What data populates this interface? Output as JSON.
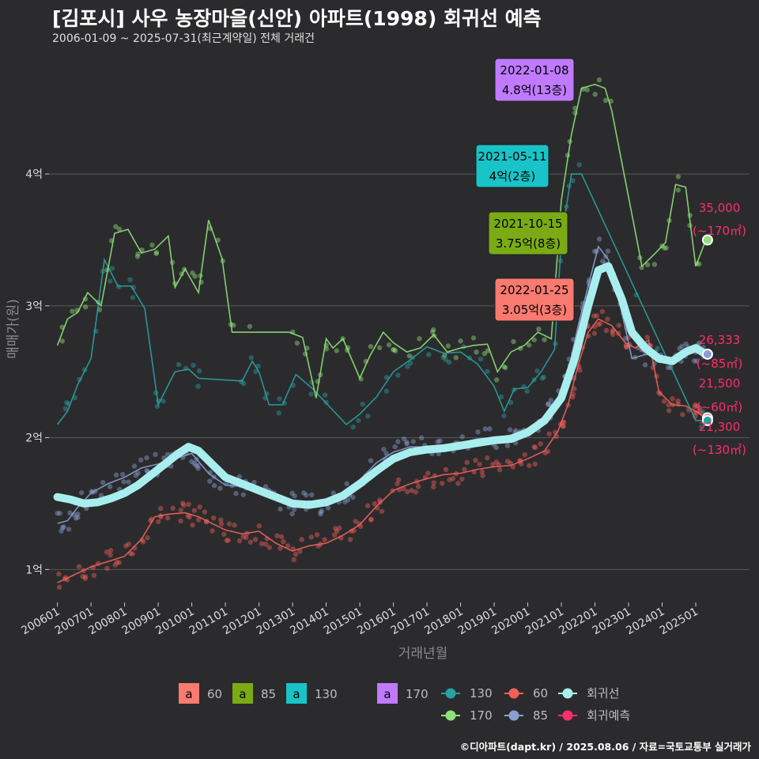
{
  "header": {
    "title": "[김포시] 사우 농장마을(신안) 아파트(1998) 회귀선 예측",
    "subtitle": "2006-01-09 ~ 2025-07-31(최근계약일) 전체 거래건"
  },
  "caption": "©디아파트(dapt.kr) / 2025.08.06 / 자료=국토교통부 실거래가",
  "colors": {
    "background": "#2b2b2d",
    "grid": "#5a5a5c",
    "s60": "#f0605a",
    "s85": "#8a9fd0",
    "s130": "#2aa0a0",
    "s170": "#8ee07a",
    "regression": "#a8eeee",
    "forecast": "#ff2d6a",
    "box60": "#f87a70",
    "box85": "#7aab14",
    "box130": "#18c4c8",
    "box170": "#c07aff"
  },
  "chart_data": {
    "type": "line",
    "title": "[김포시] 사우 농장마을(신안) 아파트(1998) 회귀선 예측",
    "subtitle": "2006-01-09 ~ 2025-07-31(최근계약일) 전체 거래건",
    "xlabel": "거래년월",
    "ylabel": "매매가(원)",
    "x_ticks": [
      "200601",
      "200701",
      "200801",
      "200901",
      "201001",
      "201101",
      "201201",
      "201301",
      "201401",
      "201501",
      "201601",
      "201701",
      "201801",
      "201901",
      "202001",
      "202101",
      "202201",
      "202301",
      "202401",
      "202501"
    ],
    "y_ticks": [
      {
        "value": 10000,
        "label": "1억"
      },
      {
        "value": 20000,
        "label": "2억"
      },
      {
        "value": 30000,
        "label": "3억"
      },
      {
        "value": 40000,
        "label": "4억"
      }
    ],
    "ylim": [
      7500,
      49000
    ],
    "xlim": [
      2005.75,
      2026.6
    ],
    "grid": true,
    "series": [
      {
        "name": "60",
        "points": [
          [
            2006.0,
            9000
          ],
          [
            2006.5,
            9600
          ],
          [
            2007.0,
            10200
          ],
          [
            2007.5,
            10600
          ],
          [
            2008.0,
            11000
          ],
          [
            2008.5,
            12300
          ],
          [
            2008.9,
            14000
          ],
          [
            2009.3,
            14200
          ],
          [
            2009.8,
            14300
          ],
          [
            2010.2,
            14000
          ],
          [
            2010.6,
            13500
          ],
          [
            2011.0,
            13000
          ],
          [
            2011.5,
            12700
          ],
          [
            2012.0,
            12900
          ],
          [
            2012.5,
            12000
          ],
          [
            2013.0,
            11400
          ],
          [
            2013.5,
            11800
          ],
          [
            2014.0,
            12000
          ],
          [
            2014.5,
            12600
          ],
          [
            2015.0,
            13400
          ],
          [
            2015.5,
            14800
          ],
          [
            2016.0,
            16000
          ],
          [
            2016.5,
            16500
          ],
          [
            2017.0,
            16900
          ],
          [
            2017.5,
            17200
          ],
          [
            2018.0,
            17300
          ],
          [
            2018.5,
            17600
          ],
          [
            2019.0,
            17800
          ],
          [
            2019.5,
            17900
          ],
          [
            2020.0,
            18400
          ],
          [
            2020.5,
            19000
          ],
          [
            2020.9,
            20500
          ],
          [
            2021.2,
            22500
          ],
          [
            2021.5,
            25500
          ],
          [
            2021.8,
            28000
          ],
          [
            2022.1,
            29000
          ],
          [
            2022.5,
            28500
          ],
          [
            2022.9,
            27200
          ],
          [
            2023.2,
            26800
          ],
          [
            2023.6,
            27400
          ],
          [
            2023.9,
            23500
          ],
          [
            2024.3,
            22500
          ],
          [
            2024.7,
            22400
          ],
          [
            2025.0,
            22000
          ],
          [
            2025.3,
            21500
          ]
        ]
      },
      {
        "name": "85",
        "points": [
          [
            2006.0,
            13500
          ],
          [
            2006.3,
            13700
          ],
          [
            2006.6,
            14700
          ],
          [
            2007.0,
            15800
          ],
          [
            2007.5,
            16500
          ],
          [
            2008.0,
            17000
          ],
          [
            2008.5,
            17700
          ],
          [
            2009.0,
            18000
          ],
          [
            2009.5,
            18400
          ],
          [
            2010.0,
            18800
          ],
          [
            2010.5,
            17300
          ],
          [
            2011.0,
            16400
          ],
          [
            2011.5,
            16300
          ],
          [
            2012.0,
            15900
          ],
          [
            2012.5,
            15400
          ],
          [
            2013.0,
            15000
          ],
          [
            2013.5,
            15200
          ],
          [
            2014.0,
            14900
          ],
          [
            2014.5,
            15500
          ],
          [
            2015.0,
            16800
          ],
          [
            2015.5,
            18100
          ],
          [
            2016.0,
            18900
          ],
          [
            2016.5,
            19300
          ],
          [
            2017.0,
            19300
          ],
          [
            2017.5,
            19400
          ],
          [
            2018.0,
            19600
          ],
          [
            2018.5,
            19900
          ],
          [
            2019.0,
            20000
          ],
          [
            2019.5,
            20200
          ],
          [
            2020.0,
            20700
          ],
          [
            2020.5,
            21400
          ],
          [
            2020.9,
            22800
          ],
          [
            2021.2,
            25000
          ],
          [
            2021.5,
            28500
          ],
          [
            2021.8,
            31500
          ],
          [
            2022.1,
            34500
          ],
          [
            2022.4,
            33500
          ],
          [
            2022.8,
            29500
          ],
          [
            2023.1,
            26000
          ],
          [
            2023.5,
            26300
          ],
          [
            2023.9,
            26300
          ],
          [
            2024.3,
            26000
          ],
          [
            2024.7,
            26400
          ],
          [
            2025.0,
            26600
          ],
          [
            2025.3,
            26500
          ]
        ]
      },
      {
        "name": "130",
        "points": [
          [
            2006.0,
            21000
          ],
          [
            2006.3,
            22000
          ],
          [
            2006.6,
            24000
          ],
          [
            2007.0,
            26000
          ],
          [
            2007.4,
            33500
          ],
          [
            2007.8,
            31500
          ],
          [
            2008.2,
            31500
          ],
          [
            2008.6,
            29800
          ],
          [
            2009.0,
            22500
          ],
          [
            2009.5,
            25000
          ],
          [
            2009.9,
            25200
          ],
          [
            2010.2,
            24500
          ],
          [
            2011.5,
            24300
          ],
          [
            2011.8,
            25800
          ],
          [
            2012.0,
            25000
          ],
          [
            2012.3,
            22500
          ],
          [
            2012.7,
            22500
          ],
          [
            2013.1,
            24800
          ],
          [
            2013.6,
            23700
          ],
          [
            2014.6,
            21000
          ],
          [
            2015.0,
            21800
          ],
          [
            2015.5,
            23100
          ],
          [
            2016.0,
            25000
          ],
          [
            2016.5,
            25900
          ],
          [
            2017.0,
            26900
          ],
          [
            2017.5,
            26400
          ],
          [
            2018.0,
            26500
          ],
          [
            2018.5,
            25600
          ],
          [
            2019.0,
            23900
          ],
          [
            2019.3,
            22000
          ],
          [
            2019.6,
            23700
          ],
          [
            2020.0,
            23800
          ],
          [
            2020.4,
            25000
          ],
          [
            2020.8,
            26700
          ],
          [
            2021.0,
            35000
          ],
          [
            2021.3,
            40000
          ],
          [
            2021.6,
            40000
          ],
          [
            2025.0,
            21300
          ],
          [
            2025.3,
            21300
          ]
        ]
      },
      {
        "name": "170",
        "points": [
          [
            2006.0,
            27000
          ],
          [
            2006.3,
            29000
          ],
          [
            2006.6,
            29500
          ],
          [
            2006.9,
            31000
          ],
          [
            2007.3,
            30000
          ],
          [
            2007.7,
            35500
          ],
          [
            2008.1,
            35800
          ],
          [
            2008.5,
            34000
          ],
          [
            2008.9,
            34300
          ],
          [
            2009.3,
            35300
          ],
          [
            2009.5,
            31400
          ],
          [
            2009.8,
            32800
          ],
          [
            2010.2,
            31000
          ],
          [
            2010.5,
            36500
          ],
          [
            2010.9,
            33600
          ],
          [
            2011.2,
            28000
          ],
          [
            2012.9,
            28000
          ],
          [
            2013.3,
            27600
          ],
          [
            2013.7,
            23000
          ],
          [
            2014.0,
            27500
          ],
          [
            2014.2,
            26800
          ],
          [
            2014.5,
            27500
          ],
          [
            2015.0,
            24500
          ],
          [
            2015.3,
            26200
          ],
          [
            2015.7,
            28000
          ],
          [
            2016.0,
            27200
          ],
          [
            2016.4,
            26500
          ],
          [
            2016.8,
            26800
          ],
          [
            2017.2,
            27800
          ],
          [
            2017.6,
            26500
          ],
          [
            2018.0,
            26800
          ],
          [
            2018.4,
            27000
          ],
          [
            2018.8,
            27100
          ],
          [
            2019.1,
            25000
          ],
          [
            2019.5,
            26500
          ],
          [
            2019.9,
            27000
          ],
          [
            2020.3,
            28000
          ],
          [
            2020.7,
            27500
          ],
          [
            2021.0,
            38000
          ],
          [
            2021.3,
            43000
          ],
          [
            2021.6,
            46500
          ],
          [
            2022.0,
            46800
          ],
          [
            2022.3,
            46500
          ],
          [
            2022.5,
            44800
          ],
          [
            2023.4,
            33000
          ],
          [
            2023.8,
            34000
          ],
          [
            2024.1,
            34800
          ],
          [
            2024.4,
            39200
          ],
          [
            2024.7,
            39000
          ],
          [
            2025.0,
            33000
          ],
          [
            2025.3,
            35000
          ]
        ]
      },
      {
        "name": "회귀선",
        "points": [
          [
            2006.0,
            15500
          ],
          [
            2006.4,
            15300
          ],
          [
            2006.8,
            15000
          ],
          [
            2007.2,
            15100
          ],
          [
            2007.6,
            15400
          ],
          [
            2008.0,
            15800
          ],
          [
            2008.4,
            16400
          ],
          [
            2008.8,
            17200
          ],
          [
            2009.2,
            18000
          ],
          [
            2009.6,
            18800
          ],
          [
            2009.9,
            19300
          ],
          [
            2010.2,
            19000
          ],
          [
            2010.6,
            18000
          ],
          [
            2011.0,
            17000
          ],
          [
            2011.5,
            16500
          ],
          [
            2012.0,
            16000
          ],
          [
            2012.5,
            15500
          ],
          [
            2013.0,
            15000
          ],
          [
            2013.5,
            14900
          ],
          [
            2014.0,
            15100
          ],
          [
            2014.5,
            15600
          ],
          [
            2015.0,
            16500
          ],
          [
            2015.5,
            17500
          ],
          [
            2016.0,
            18400
          ],
          [
            2016.5,
            18900
          ],
          [
            2017.0,
            19100
          ],
          [
            2017.5,
            19200
          ],
          [
            2018.0,
            19400
          ],
          [
            2018.5,
            19600
          ],
          [
            2019.0,
            19800
          ],
          [
            2019.5,
            19900
          ],
          [
            2020.0,
            20400
          ],
          [
            2020.5,
            21300
          ],
          [
            2021.0,
            23000
          ],
          [
            2021.4,
            26000
          ],
          [
            2021.8,
            30000
          ],
          [
            2022.1,
            32700
          ],
          [
            2022.4,
            33000
          ],
          [
            2022.8,
            30500
          ],
          [
            2023.1,
            28000
          ],
          [
            2023.5,
            26800
          ],
          [
            2023.9,
            26000
          ],
          [
            2024.3,
            25800
          ],
          [
            2024.7,
            26500
          ],
          [
            2025.0,
            26800
          ],
          [
            2025.3,
            26333
          ]
        ]
      }
    ],
    "forecast_points": [
      {
        "label_value": "35,000",
        "label_area": "(~170㎡)",
        "x": 2025.35,
        "y": 35000
      },
      {
        "label_value": "26,333",
        "label_area": "(~85㎡)",
        "x": 2025.35,
        "y": 26333
      },
      {
        "label_value": "21,500",
        "label_area": "(~60㎡)",
        "x": 2025.35,
        "y": 21500
      },
      {
        "label_value": "21,300",
        "label_area": "(~130㎡)",
        "x": 2025.35,
        "y": 21300
      }
    ],
    "annotations": [
      {
        "key": "box170",
        "date": "2022-01-08",
        "price": "4.8억(13층)",
        "x": 2022.02,
        "y": 48000
      },
      {
        "key": "box130",
        "date": "2021-05-11",
        "price": "4억(2층)",
        "x": 2021.36,
        "y": 40000
      },
      {
        "key": "box85",
        "date": "2021-10-15",
        "price": "3.75억(8층)",
        "x": 2021.79,
        "y": 37500
      },
      {
        "key": "box60",
        "date": "2022-01-25",
        "price": "3.05억(3층)",
        "x": 2022.07,
        "y": 30500
      }
    ],
    "legend_boxes": [
      {
        "key": "box60",
        "glyph": "a",
        "label": "60"
      },
      {
        "key": "box85",
        "glyph": "a",
        "label": "85"
      },
      {
        "key": "box130",
        "glyph": "a",
        "label": "130"
      },
      {
        "key": "box170",
        "glyph": "a",
        "label": "170"
      }
    ],
    "legend_lines": [
      {
        "key": "s130",
        "label": "130"
      },
      {
        "key": "s170",
        "label": "170"
      },
      {
        "key": "s60",
        "label": "60"
      },
      {
        "key": "s85",
        "label": "85"
      },
      {
        "key": "regression",
        "label": "회귀선"
      },
      {
        "key": "forecast",
        "label": "회귀예측"
      }
    ]
  }
}
